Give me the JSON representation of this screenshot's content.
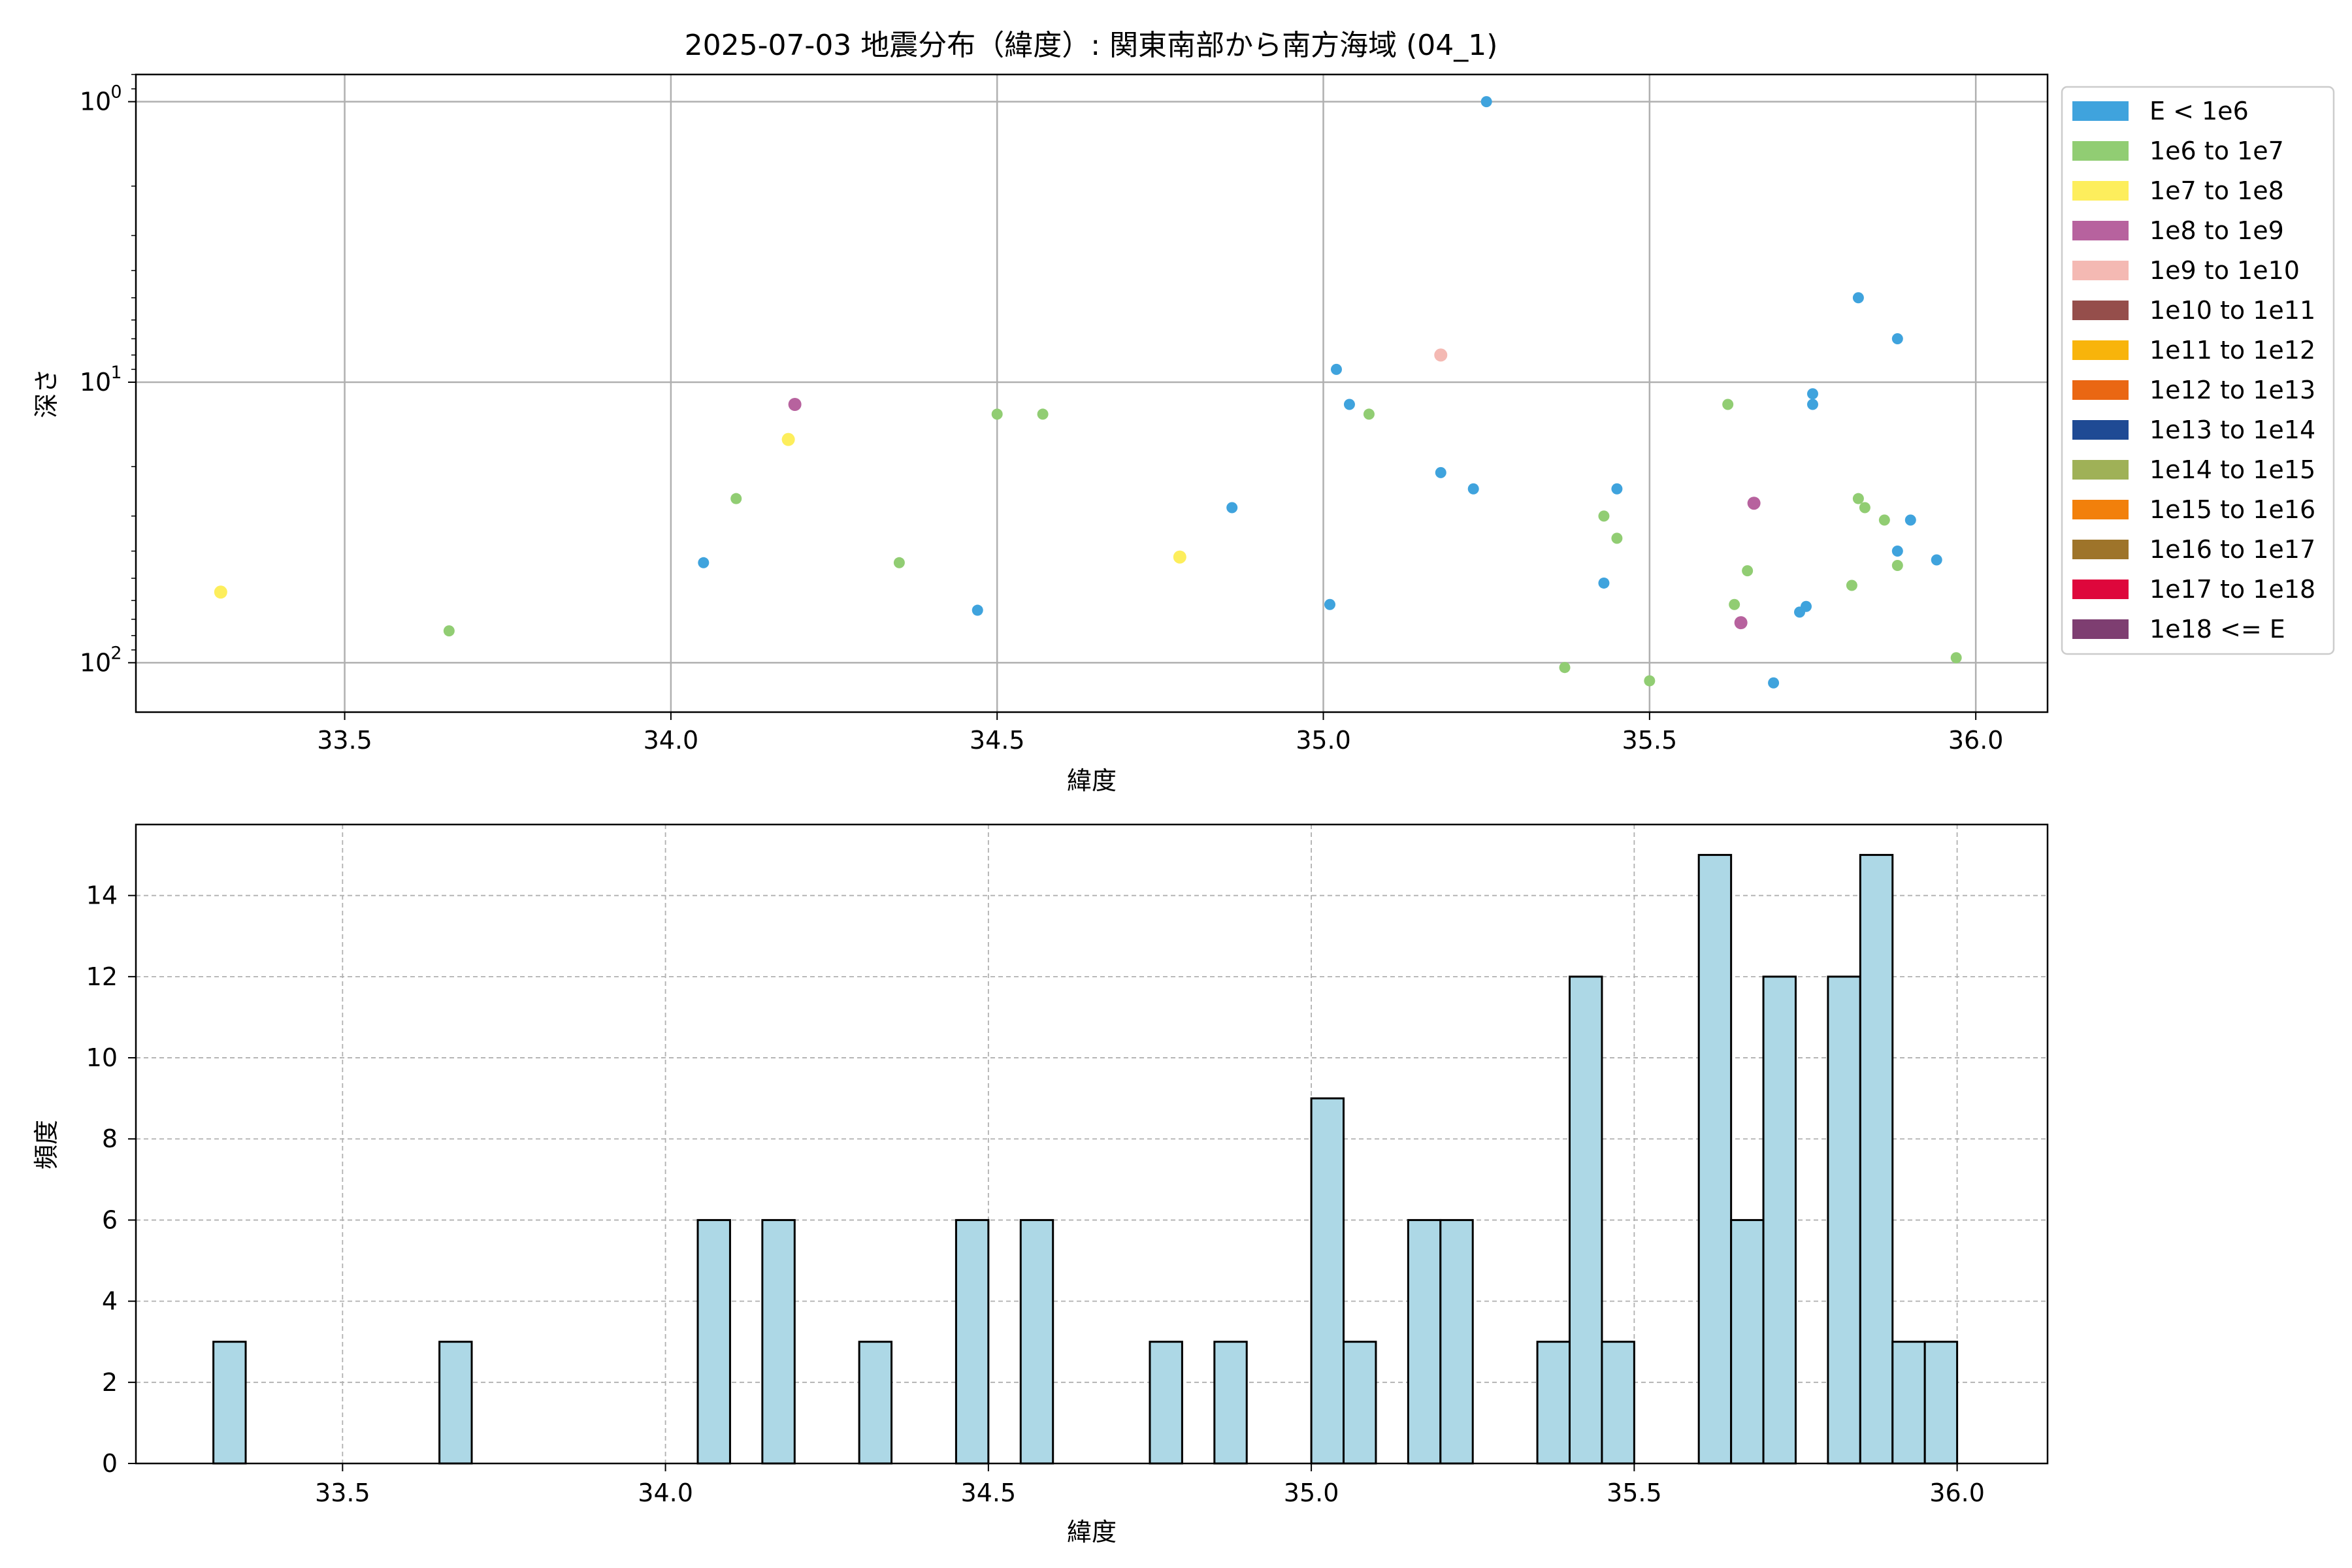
{
  "chart_data": [
    {
      "type": "scatter",
      "title": "2025-07-03 地震分布（緯度）: 関東南部から南方海域 (04_1)",
      "xlabel": "緯度",
      "ylabel": "深さ",
      "yscale": "log",
      "y_inverted": true,
      "xlim": [
        33.18,
        36.11
      ],
      "ylim": [
        150,
        0.8
      ],
      "xticks": [
        "33.5",
        "34.0",
        "34.5",
        "35.0",
        "35.5",
        "36.0"
      ],
      "xtick_values": [
        33.5,
        34.0,
        34.5,
        35.0,
        35.5,
        36.0
      ],
      "yticks": [
        1,
        10,
        100
      ],
      "grid": true,
      "legend_position": "outside-right",
      "legend": [
        {
          "label": "E < 1e6",
          "color": "#3fa3dd"
        },
        {
          "label": "1e6 to 1e7",
          "color": "#91cd73"
        },
        {
          "label": "1e7 to 1e8",
          "color": "#fdee5c"
        },
        {
          "label": "1e8 to 1e9",
          "color": "#b7629e"
        },
        {
          "label": "1e9 to 1e10",
          "color": "#f4b9b3"
        },
        {
          "label": "1e10 to 1e11",
          "color": "#954e4b"
        },
        {
          "label": "1e11 to 1e12",
          "color": "#f8b40b"
        },
        {
          "label": "1e12 to 1e13",
          "color": "#ea6713"
        },
        {
          "label": "1e13 to 1e14",
          "color": "#1f4a94"
        },
        {
          "label": "1e14 to 1e15",
          "color": "#9fb157"
        },
        {
          "label": "1e15 to 1e16",
          "color": "#f2800b"
        },
        {
          "label": "1e16 to 1e17",
          "color": "#9e742a"
        },
        {
          "label": "1e17 to 1e18",
          "color": "#de073c"
        },
        {
          "label": "1e18 <= E",
          "color": "#7e3e71"
        }
      ],
      "points": [
        {
          "x": 33.31,
          "y": 56,
          "c": 2
        },
        {
          "x": 33.66,
          "y": 77,
          "c": 1
        },
        {
          "x": 34.05,
          "y": 44,
          "c": 0
        },
        {
          "x": 34.1,
          "y": 26,
          "c": 1
        },
        {
          "x": 34.18,
          "y": 16,
          "c": 2
        },
        {
          "x": 34.19,
          "y": 12,
          "c": 3
        },
        {
          "x": 34.35,
          "y": 44,
          "c": 1
        },
        {
          "x": 34.47,
          "y": 65,
          "c": 0
        },
        {
          "x": 34.5,
          "y": 13,
          "c": 1
        },
        {
          "x": 34.57,
          "y": 13,
          "c": 1
        },
        {
          "x": 34.78,
          "y": 42,
          "c": 2
        },
        {
          "x": 34.86,
          "y": 28,
          "c": 0
        },
        {
          "x": 35.01,
          "y": 62,
          "c": 0
        },
        {
          "x": 35.02,
          "y": 9,
          "c": 0
        },
        {
          "x": 35.04,
          "y": 12,
          "c": 0
        },
        {
          "x": 35.07,
          "y": 13,
          "c": 1
        },
        {
          "x": 35.18,
          "y": 8,
          "c": 4
        },
        {
          "x": 35.18,
          "y": 21,
          "c": 0
        },
        {
          "x": 35.23,
          "y": 24,
          "c": 0
        },
        {
          "x": 35.25,
          "y": 1,
          "c": 0
        },
        {
          "x": 35.37,
          "y": 104,
          "c": 1
        },
        {
          "x": 35.43,
          "y": 30,
          "c": 1
        },
        {
          "x": 35.43,
          "y": 52,
          "c": 0
        },
        {
          "x": 35.45,
          "y": 36,
          "c": 1
        },
        {
          "x": 35.45,
          "y": 24,
          "c": 0
        },
        {
          "x": 35.5,
          "y": 116,
          "c": 1
        },
        {
          "x": 35.62,
          "y": 12,
          "c": 1
        },
        {
          "x": 35.63,
          "y": 62,
          "c": 1
        },
        {
          "x": 35.64,
          "y": 72,
          "c": 3
        },
        {
          "x": 35.65,
          "y": 47,
          "c": 1
        },
        {
          "x": 35.66,
          "y": 27,
          "c": 3
        },
        {
          "x": 35.69,
          "y": 118,
          "c": 0
        },
        {
          "x": 35.73,
          "y": 66,
          "c": 0
        },
        {
          "x": 35.74,
          "y": 63,
          "c": 0
        },
        {
          "x": 35.75,
          "y": 11,
          "c": 0
        },
        {
          "x": 35.75,
          "y": 12,
          "c": 0
        },
        {
          "x": 35.81,
          "y": 53,
          "c": 1
        },
        {
          "x": 35.82,
          "y": 26,
          "c": 1
        },
        {
          "x": 35.82,
          "y": 5,
          "c": 0
        },
        {
          "x": 35.83,
          "y": 28,
          "c": 1
        },
        {
          "x": 35.86,
          "y": 31,
          "c": 1
        },
        {
          "x": 35.88,
          "y": 40,
          "c": 0
        },
        {
          "x": 35.88,
          "y": 45,
          "c": 1
        },
        {
          "x": 35.88,
          "y": 7,
          "c": 0
        },
        {
          "x": 35.9,
          "y": 31,
          "c": 0
        },
        {
          "x": 35.94,
          "y": 43,
          "c": 0
        },
        {
          "x": 35.97,
          "y": 96,
          "c": 1
        }
      ]
    },
    {
      "type": "bar",
      "title": "",
      "xlabel": "緯度",
      "ylabel": "頻度",
      "xlim": [
        33.18,
        36.14
      ],
      "ylim": [
        0,
        15.75
      ],
      "xticks": [
        "33.5",
        "34.0",
        "34.5",
        "35.0",
        "35.5",
        "36.0"
      ],
      "xtick_values": [
        33.5,
        34.0,
        34.5,
        35.0,
        35.5,
        36.0
      ],
      "yticks": [
        "0",
        "2",
        "4",
        "6",
        "8",
        "10",
        "12",
        "14"
      ],
      "ytick_values": [
        0,
        2,
        4,
        6,
        8,
        10,
        12,
        14
      ],
      "grid": true,
      "bar_color": "#add8e6",
      "bins": [
        {
          "x0": 33.3,
          "x1": 33.35,
          "v": 3
        },
        {
          "x0": 33.65,
          "x1": 33.7,
          "v": 3
        },
        {
          "x0": 34.05,
          "x1": 34.1,
          "v": 6
        },
        {
          "x0": 34.15,
          "x1": 34.2,
          "v": 6
        },
        {
          "x0": 34.3,
          "x1": 34.35,
          "v": 3
        },
        {
          "x0": 34.45,
          "x1": 34.5,
          "v": 6
        },
        {
          "x0": 34.55,
          "x1": 34.6,
          "v": 6
        },
        {
          "x0": 34.75,
          "x1": 34.8,
          "v": 3
        },
        {
          "x0": 34.85,
          "x1": 34.9,
          "v": 3
        },
        {
          "x0": 35.0,
          "x1": 35.05,
          "v": 9
        },
        {
          "x0": 35.05,
          "x1": 35.1,
          "v": 3
        },
        {
          "x0": 35.15,
          "x1": 35.2,
          "v": 6
        },
        {
          "x0": 35.2,
          "x1": 35.25,
          "v": 6
        },
        {
          "x0": 35.35,
          "x1": 35.4,
          "v": 3
        },
        {
          "x0": 35.4,
          "x1": 35.45,
          "v": 12
        },
        {
          "x0": 35.45,
          "x1": 35.5,
          "v": 3
        },
        {
          "x0": 35.6,
          "x1": 35.65,
          "v": 15
        },
        {
          "x0": 35.65,
          "x1": 35.7,
          "v": 6
        },
        {
          "x0": 35.7,
          "x1": 35.75,
          "v": 12
        },
        {
          "x0": 35.8,
          "x1": 35.85,
          "v": 12
        },
        {
          "x0": 35.85,
          "x1": 35.9,
          "v": 15
        },
        {
          "x0": 35.9,
          "x1": 35.95,
          "v": 3
        },
        {
          "x0": 35.95,
          "x1": 36.0,
          "v": 3
        }
      ]
    }
  ]
}
